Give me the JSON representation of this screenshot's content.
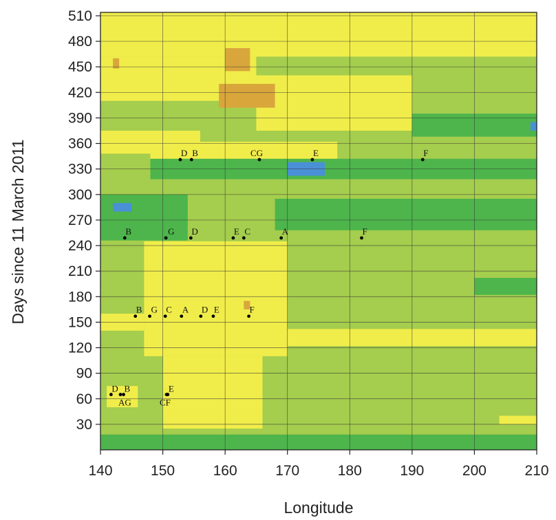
{
  "chart_data": {
    "type": "heatmap",
    "xlabel": "Longitude",
    "ylabel": "Days since 11 March 2011",
    "xlim": [
      140,
      210
    ],
    "ylim": [
      0,
      514
    ],
    "x_ticks": [
      140,
      150,
      160,
      170,
      180,
      190,
      200,
      210
    ],
    "y_ticks": [
      30,
      60,
      90,
      120,
      150,
      180,
      210,
      240,
      270,
      300,
      330,
      360,
      390,
      420,
      450,
      480,
      510
    ],
    "grid": true,
    "colors": {
      "background": "#a5cd4e",
      "light_yellow": "#f0ed4a",
      "dark_green": "#4db54b",
      "blue": "#4a90d6",
      "orange": "#d9a63c",
      "point": "#000000",
      "grid": "#333333"
    },
    "regions": [
      {
        "color": "light_yellow",
        "x": [
          140,
          210
        ],
        "y": [
          462,
          514
        ]
      },
      {
        "color": "light_yellow",
        "x": [
          140,
          165
        ],
        "y": [
          410,
          462
        ]
      },
      {
        "color": "light_yellow",
        "x": [
          165,
          190
        ],
        "y": [
          375,
          440
        ]
      },
      {
        "color": "light_yellow",
        "x": [
          140,
          156
        ],
        "y": [
          348,
          375
        ]
      },
      {
        "color": "light_yellow",
        "x": [
          148,
          178
        ],
        "y": [
          340,
          362
        ]
      },
      {
        "color": "dark_green",
        "x": [
          148,
          210
        ],
        "y": [
          318,
          342
        ]
      },
      {
        "color": "dark_green",
        "x": [
          140,
          154
        ],
        "y": [
          246,
          300
        ]
      },
      {
        "color": "dark_green",
        "x": [
          168,
          210
        ],
        "y": [
          258,
          295
        ]
      },
      {
        "color": "dark_green",
        "x": [
          190,
          210
        ],
        "y": [
          368,
          395
        ]
      },
      {
        "color": "dark_green",
        "x": [
          200,
          210
        ],
        "y": [
          182,
          202
        ]
      },
      {
        "color": "dark_green",
        "x": [
          140,
          210
        ],
        "y": [
          0,
          18
        ]
      },
      {
        "color": "light_yellow",
        "x": [
          147,
          170
        ],
        "y": [
          110,
          245
        ]
      },
      {
        "color": "light_yellow",
        "x": [
          140,
          147
        ],
        "y": [
          140,
          160
        ]
      },
      {
        "color": "light_yellow",
        "x": [
          150,
          166
        ],
        "y": [
          25,
          110
        ]
      },
      {
        "color": "light_yellow",
        "x": [
          170,
          210
        ],
        "y": [
          122,
          142
        ]
      },
      {
        "color": "light_yellow",
        "x": [
          141,
          146
        ],
        "y": [
          50,
          75
        ]
      },
      {
        "color": "light_yellow",
        "x": [
          204,
          210
        ],
        "y": [
          30,
          40
        ]
      },
      {
        "color": "blue",
        "x": [
          170,
          176
        ],
        "y": [
          322,
          338
        ]
      },
      {
        "color": "blue",
        "x": [
          142,
          145
        ],
        "y": [
          280,
          290
        ]
      },
      {
        "color": "blue",
        "x": [
          209,
          210
        ],
        "y": [
          375,
          385
        ]
      },
      {
        "color": "orange",
        "x": [
          159,
          168
        ],
        "y": [
          402,
          430
        ]
      },
      {
        "color": "orange",
        "x": [
          160,
          164
        ],
        "y": [
          445,
          472
        ]
      },
      {
        "color": "orange",
        "x": [
          142,
          143
        ],
        "y": [
          448,
          460
        ]
      },
      {
        "color": "orange",
        "x": [
          163,
          164
        ],
        "y": [
          165,
          175
        ]
      }
    ],
    "points": [
      {
        "label": "D",
        "lon": 152.8,
        "day": 341,
        "ldx": 1,
        "ldy": -5
      },
      {
        "label": "B",
        "lon": 154.6,
        "day": 341,
        "ldx": 1,
        "ldy": -5
      },
      {
        "label": "CG",
        "lon": 165.5,
        "day": 341,
        "ldx": -13,
        "ldy": -5
      },
      {
        "label": "E",
        "lon": 174.0,
        "day": 341,
        "ldx": 1,
        "ldy": -5
      },
      {
        "label": "F",
        "lon": 191.7,
        "day": 341,
        "ldx": 1,
        "ldy": -5
      },
      {
        "label": "B",
        "lon": 143.9,
        "day": 249,
        "ldx": 1,
        "ldy": -5
      },
      {
        "label": "G",
        "lon": 150.5,
        "day": 249,
        "ldx": 3,
        "ldy": -5
      },
      {
        "label": "D",
        "lon": 154.5,
        "day": 249,
        "ldx": 1,
        "ldy": -5
      },
      {
        "label": "E",
        "lon": 161.3,
        "day": 249,
        "ldx": 1,
        "ldy": -5
      },
      {
        "label": "C",
        "lon": 163.0,
        "day": 249,
        "ldx": 1,
        "ldy": -5
      },
      {
        "label": "A",
        "lon": 169.0,
        "day": 249,
        "ldx": 1,
        "ldy": -5
      },
      {
        "label": "F",
        "lon": 181.9,
        "day": 249,
        "ldx": 1,
        "ldy": -5
      },
      {
        "label": "B",
        "lon": 145.6,
        "day": 157,
        "ldx": 1,
        "ldy": -5
      },
      {
        "label": "G",
        "lon": 147.9,
        "day": 157,
        "ldx": 2,
        "ldy": -5
      },
      {
        "label": "C",
        "lon": 150.4,
        "day": 157,
        "ldx": 1,
        "ldy": -5
      },
      {
        "label": "A",
        "lon": 153.0,
        "day": 157,
        "ldx": 1,
        "ldy": -5
      },
      {
        "label": "D",
        "lon": 156.1,
        "day": 157,
        "ldx": 1,
        "ldy": -5
      },
      {
        "label": "E",
        "lon": 158.1,
        "day": 157,
        "ldx": 1,
        "ldy": -5
      },
      {
        "label": "F",
        "lon": 163.8,
        "day": 157,
        "ldx": 1,
        "ldy": -5
      },
      {
        "label": "D",
        "lon": 141.7,
        "day": 65,
        "ldx": 1,
        "ldy": -4
      },
      {
        "label": "B",
        "lon": 143.7,
        "day": 65,
        "ldx": 1,
        "ldy": -4
      },
      {
        "label": "AG",
        "lon": 143.2,
        "day": 65,
        "ldx": -3,
        "ldy": 16
      },
      {
        "label": "E",
        "lon": 150.8,
        "day": 65,
        "ldx": 1,
        "ldy": -4
      },
      {
        "label": "CF",
        "lon": 150.6,
        "day": 65,
        "ldx": -10,
        "ldy": 16
      }
    ]
  }
}
